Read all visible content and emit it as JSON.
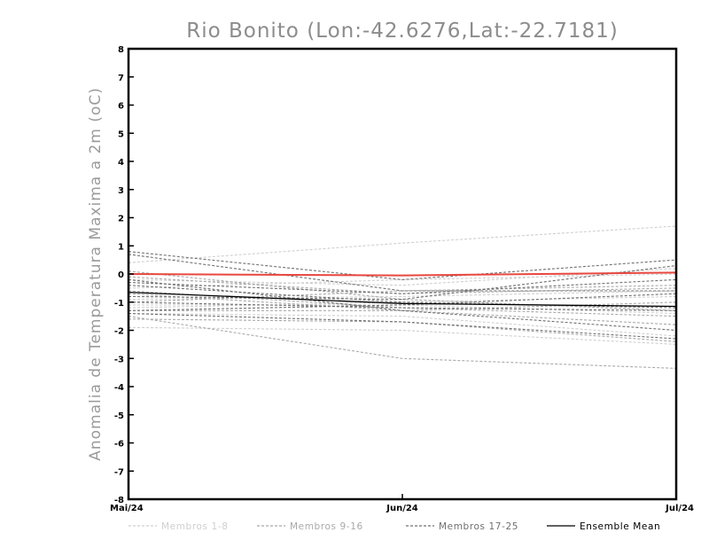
{
  "chart_data": {
    "type": "line",
    "title": "Rio Bonito (Lon:-42.6276,Lat:-22.7181)",
    "xlabel": "",
    "ylabel": "Anomalia de Temperatura Maxima a 2m (oC)",
    "x": [
      "Mai/24",
      "Jun/24",
      "Jul/24"
    ],
    "ylim": [
      -8,
      8
    ],
    "yticks": [
      -8,
      -7,
      -6,
      -5,
      -4,
      -3,
      -2,
      -1,
      0,
      1,
      2,
      3,
      4,
      5,
      6,
      7,
      8
    ],
    "grid": false,
    "legend_position": "bottom",
    "legend": [
      {
        "label": "Membros 1-8",
        "color": "#cfcfcf",
        "style": "dashed"
      },
      {
        "label": "Membros 9-16",
        "color": "#a9a9a9",
        "style": "dashed"
      },
      {
        "label": "Membros 17-25",
        "color": "#707070",
        "style": "dashed"
      },
      {
        "label": "Ensemble Mean",
        "color": "#000000",
        "style": "solid"
      }
    ],
    "groups": [
      {
        "color": "#cfcfcf",
        "members": [
          [
            0.4,
            1.1,
            1.7
          ],
          [
            -0.2,
            -0.4,
            0.2
          ],
          [
            -0.9,
            -0.8,
            -0.6
          ],
          [
            -1.1,
            -1.1,
            -1.4
          ],
          [
            -1.4,
            -1.5,
            -2.2
          ],
          [
            -1.9,
            -2.0,
            -2.5
          ],
          [
            -0.5,
            -0.2,
            0.0
          ],
          [
            -1.2,
            -1.0,
            -0.8
          ]
        ]
      },
      {
        "color": "#a9a9a9",
        "members": [
          [
            -1.5,
            -3.0,
            -3.35
          ],
          [
            -0.1,
            -0.7,
            -0.5
          ],
          [
            -0.6,
            -1.2,
            -1.5
          ],
          [
            -1.0,
            -0.6,
            -0.4
          ],
          [
            -1.3,
            -1.3,
            -1.0
          ],
          [
            0.1,
            -0.9,
            -1.3
          ],
          [
            -0.7,
            -1.3,
            -1.8
          ],
          [
            -1.6,
            -1.7,
            -2.4
          ]
        ]
      },
      {
        "color": "#707070",
        "members": [
          [
            0.8,
            -0.2,
            0.5
          ],
          [
            0.7,
            -0.6,
            -0.6
          ],
          [
            -0.3,
            -0.7,
            -0.2
          ],
          [
            -0.4,
            -1.0,
            -1.2
          ],
          [
            -0.8,
            -0.9,
            0.3
          ],
          [
            -1.0,
            -1.2,
            -1.3
          ],
          [
            -1.3,
            -1.1,
            -0.7
          ],
          [
            -1.4,
            -1.7,
            -2.3
          ],
          [
            -0.2,
            -1.3,
            -2.0
          ]
        ]
      }
    ],
    "highlight": {
      "color": "#e8473f",
      "values": [
        0.0,
        -0.05,
        0.05
      ]
    },
    "ensemble_mean": {
      "color": "#000000",
      "values": [
        -0.65,
        -1.05,
        -1.15
      ]
    }
  }
}
